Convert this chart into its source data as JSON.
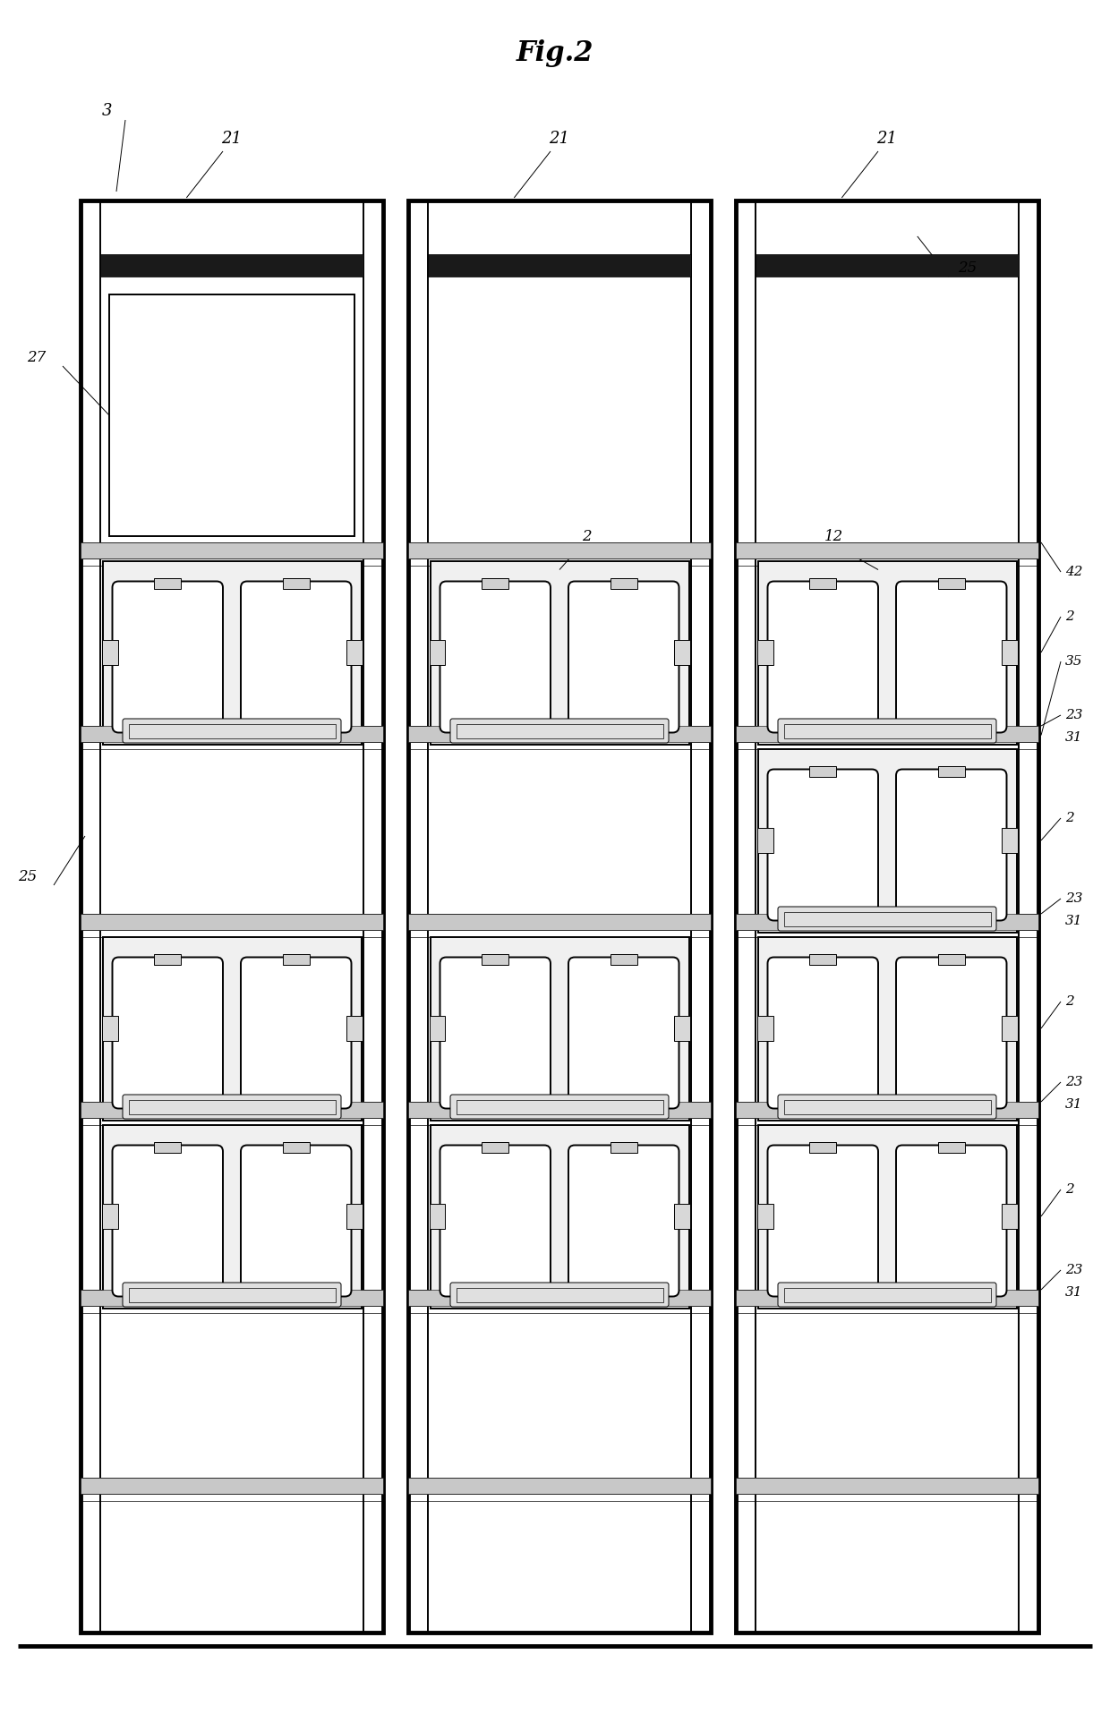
{
  "title": "Fig.2",
  "bg_color": "#ffffff",
  "line_color": "#000000",
  "fig_width": 12.4,
  "fig_height": 19.34,
  "labels": {
    "fig": "Fig.2",
    "3": "3",
    "21": "21",
    "27": "27",
    "25a": "25",
    "25b": "25",
    "2": "2",
    "12": "12",
    "42": "42",
    "35": "35",
    "23": "23",
    "31": "31"
  }
}
